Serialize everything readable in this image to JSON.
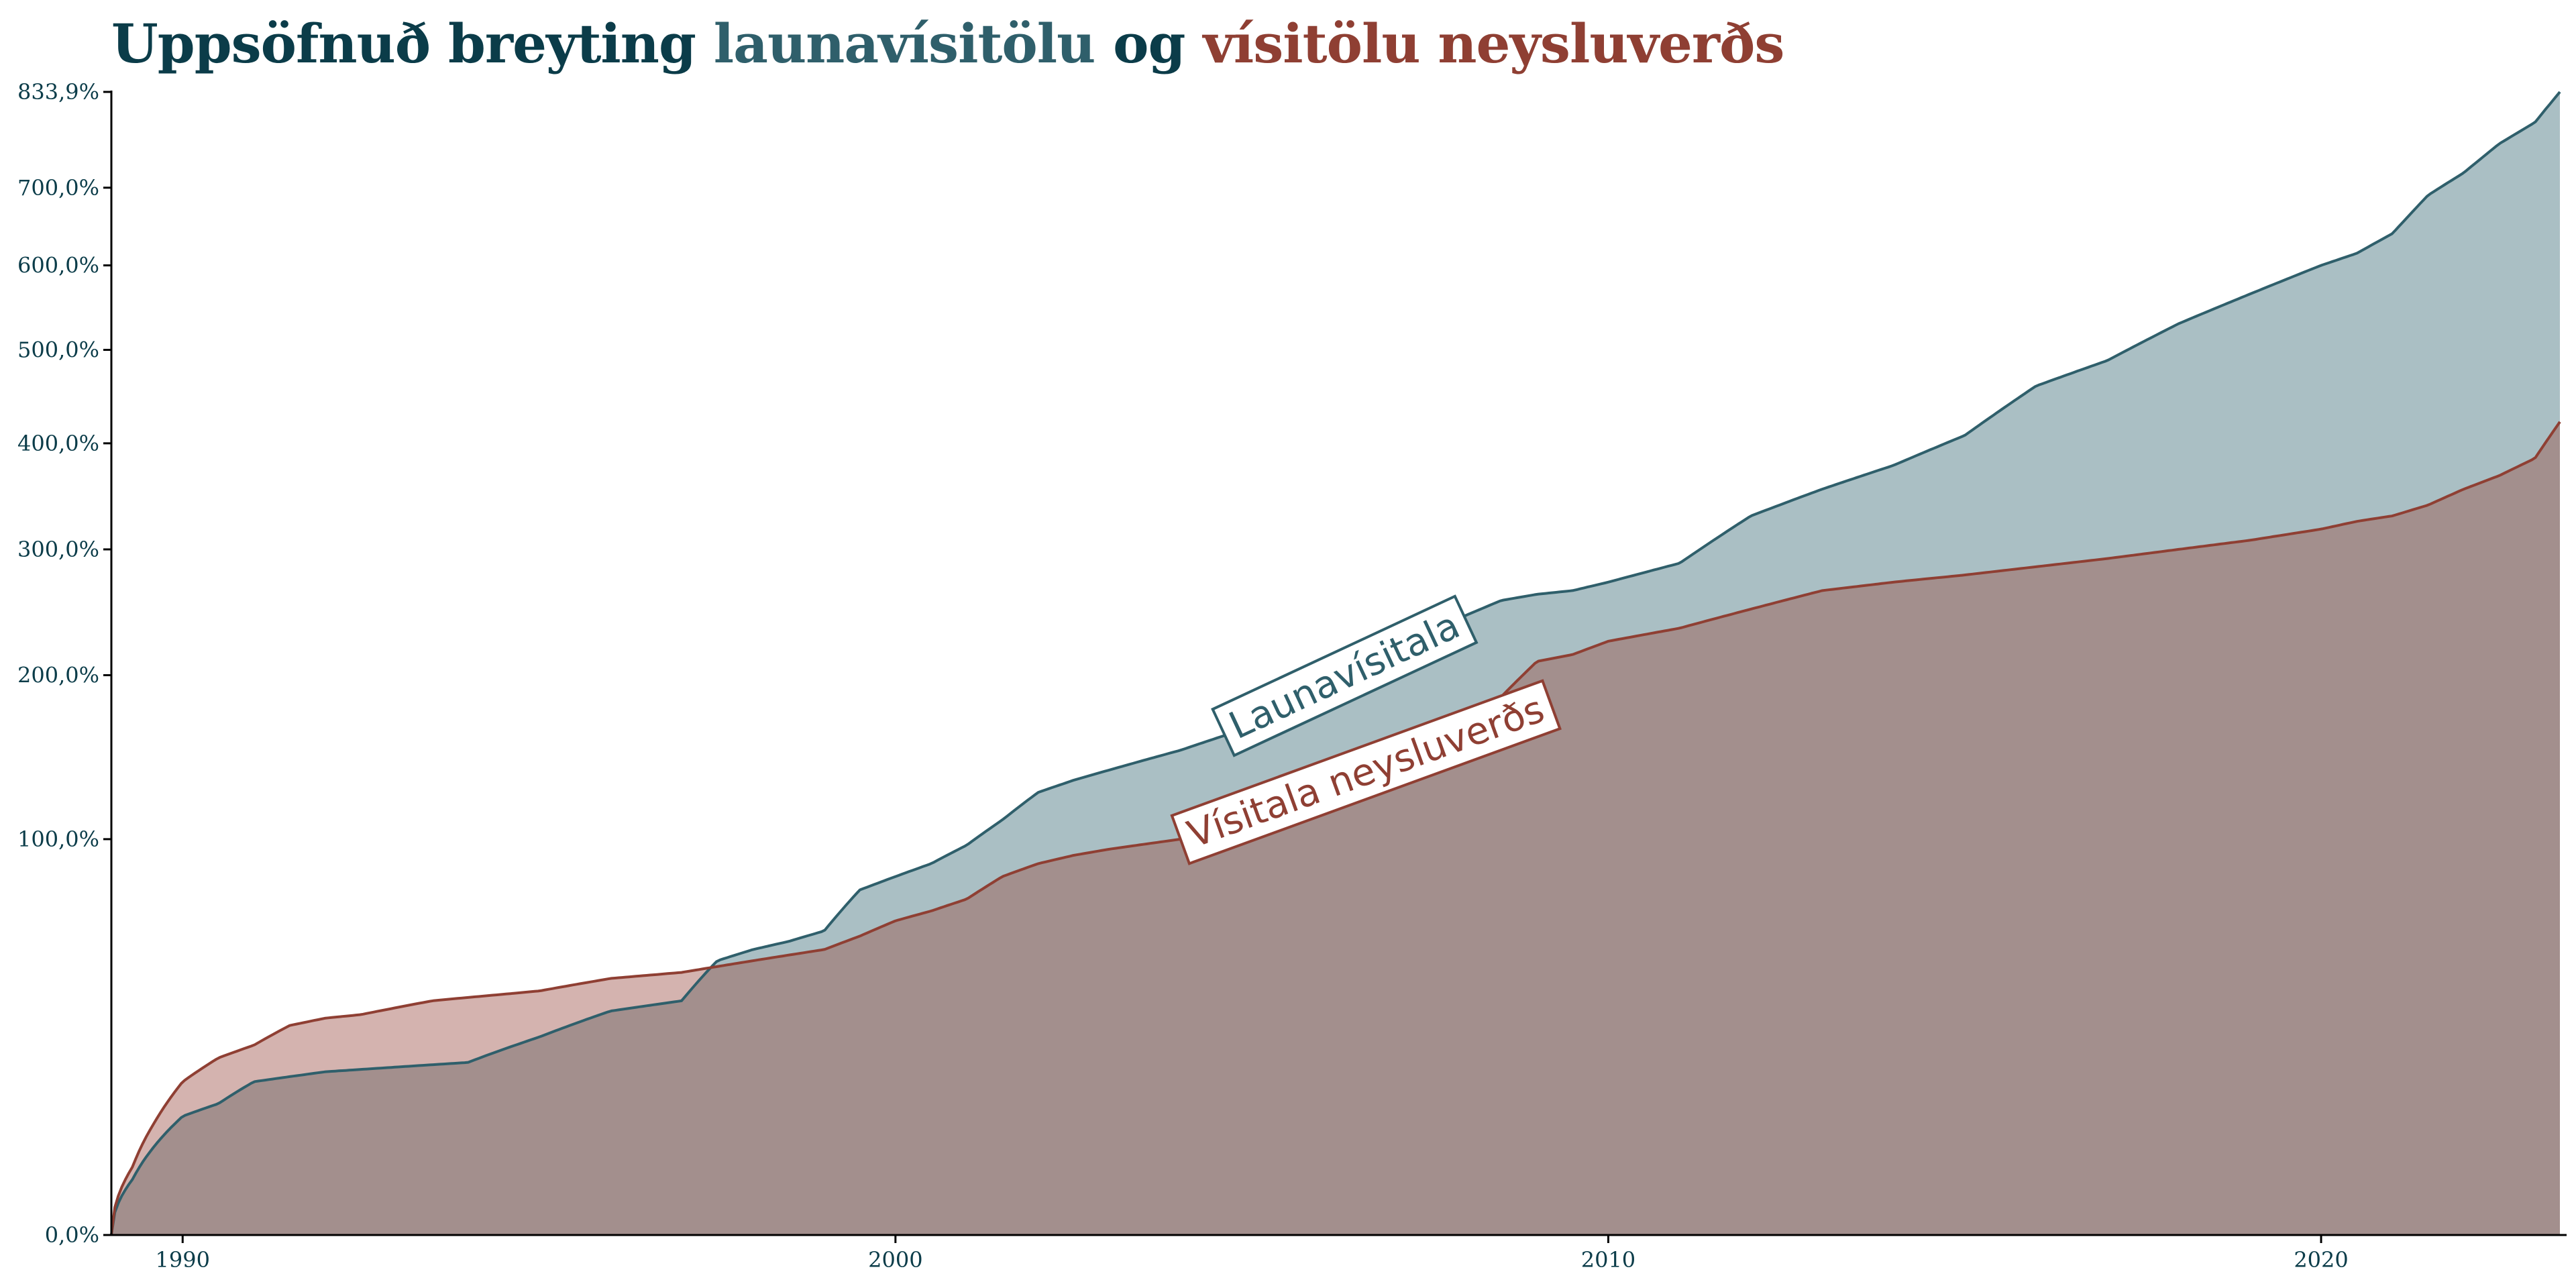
{
  "title": {
    "part1": "Uppsöfnuð breyting ",
    "part2": "launavísitölu",
    "part3": " og ",
    "part4": "vísitölu neysluverðs"
  },
  "colors": {
    "wage": "#2f5f6b",
    "wage_fill": "#aabfc4",
    "cpi": "#8f3f33",
    "cpi_fill_below": "#a38f8d",
    "cpi_fill_above": "#d4b3af",
    "text": "#0b3c49"
  },
  "chart_data": {
    "type": "area",
    "title": "Uppsöfnuð breyting launavísitölu og vísitölu neysluverðs",
    "xlabel": "",
    "ylabel": "",
    "y_scale": "sqrt",
    "ylim": [
      0,
      833.9
    ],
    "xlim": [
      1989.0,
      2023.35
    ],
    "yticks": [
      0,
      100,
      200,
      300,
      400,
      500,
      600,
      700,
      833.9
    ],
    "ytick_labels": [
      "0,0%",
      "100,0%",
      "200,0%",
      "300,0%",
      "400,0%",
      "500,0%",
      "600,0%",
      "700,0%",
      "833,9%"
    ],
    "xticks": [
      1990,
      2000,
      2010,
      2020
    ],
    "xtick_labels": [
      "1990",
      "2000",
      "2010",
      "2020"
    ],
    "annotations": [
      {
        "text": "Launavísitala",
        "series": "wage"
      },
      {
        "text": "Vísitala neysluverðs",
        "series": "cpi"
      }
    ],
    "series": [
      {
        "key": "wage",
        "name": "Launavísitala",
        "x": [
          1989.0,
          1989.3,
          1989.6,
          1990.0,
          1990.5,
          1991.0,
          1991.5,
          1992.0,
          1993.0,
          1994.0,
          1995.0,
          1996.0,
          1997.0,
          1997.5,
          1998.0,
          1998.5,
          1999.0,
          1999.5,
          2000.0,
          2000.5,
          2001.0,
          2001.5,
          2002.0,
          2002.5,
          2003.0,
          2004.0,
          2005.0,
          2006.0,
          2007.0,
          2007.5,
          2008.0,
          2008.5,
          2009.0,
          2009.5,
          2010.0,
          2011.0,
          2012.0,
          2013.0,
          2014.0,
          2015.0,
          2016.0,
          2017.0,
          2018.0,
          2019.0,
          2020.0,
          2020.5,
          2021.0,
          2021.5,
          2022.0,
          2022.5,
          2023.0,
          2023.35
        ],
        "values": [
          0,
          2,
          5,
          9,
          11,
          15,
          16,
          17,
          18,
          19,
          25,
          32,
          35,
          48,
          52,
          55,
          59,
          76,
          82,
          88,
          97,
          110,
          125,
          132,
          138,
          150,
          165,
          185,
          205,
          228,
          245,
          257,
          262,
          265,
          272,
          288,
          330,
          355,
          378,
          408,
          460,
          488,
          530,
          565,
          600,
          615,
          640,
          690,
          720,
          760,
          790,
          833.9
        ]
      },
      {
        "key": "cpi",
        "name": "Vísitala neysluverðs",
        "x": [
          1989.0,
          1989.3,
          1989.6,
          1990.0,
          1990.5,
          1991.0,
          1991.5,
          1992.0,
          1992.5,
          1993.0,
          1993.5,
          1994.0,
          1995.0,
          1996.0,
          1997.0,
          1997.5,
          1998.0,
          1998.5,
          1999.0,
          1999.5,
          2000.0,
          2000.5,
          2001.0,
          2001.5,
          2002.0,
          2002.5,
          2003.0,
          2004.0,
          2005.0,
          2006.0,
          2007.0,
          2007.5,
          2008.0,
          2008.5,
          2009.0,
          2009.5,
          2010.0,
          2011.0,
          2012.0,
          2013.0,
          2014.0,
          2015.0,
          2016.0,
          2017.0,
          2018.0,
          2019.0,
          2020.0,
          2020.5,
          2021.0,
          2021.5,
          2022.0,
          2022.5,
          2023.0,
          2023.35
        ],
        "values": [
          0,
          3,
          8,
          15,
          20,
          23,
          28,
          30,
          31,
          33,
          35,
          36,
          38,
          42,
          44,
          46,
          48,
          50,
          52,
          57,
          63,
          67,
          72,
          82,
          88,
          92,
          95,
          100,
          107,
          118,
          133,
          145,
          158,
          185,
          210,
          215,
          225,
          235,
          250,
          265,
          272,
          278,
          285,
          292,
          300,
          308,
          318,
          325,
          330,
          340,
          355,
          368,
          385,
          422
        ]
      }
    ]
  }
}
